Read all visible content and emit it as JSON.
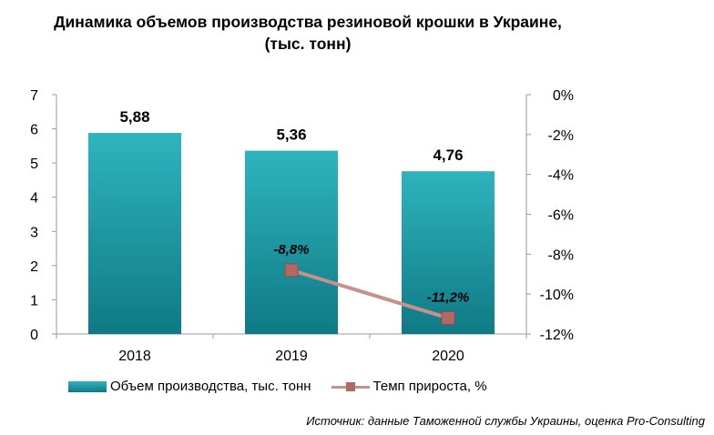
{
  "title_lines": [
    "Динамика объемов производства резиновой крошки в Украине,",
    "(тыс. тонн)"
  ],
  "legend": {
    "bar_label": "Объем производства, тыс. тонн",
    "line_label": "Темп прироста, %"
  },
  "source": "Источник: данные  Таможенной службы Украины, оценка Pro-Consulting",
  "colors": {
    "bar_top": "#2fb4be",
    "bar_bottom": "#0f7a85",
    "line": "#c9908a",
    "marker": "#b06a63"
  },
  "chart_data": {
    "type": "bar",
    "categories": [
      "2018",
      "2019",
      "2020"
    ],
    "series": [
      {
        "name": "Объем производства, тыс. тонн",
        "type": "bar",
        "axis": "left",
        "values": [
          5.88,
          5.36,
          4.76
        ],
        "labels": [
          "5,88",
          "5,36",
          "4,76"
        ]
      },
      {
        "name": "Темп прироста, %",
        "type": "line",
        "axis": "right",
        "values": [
          null,
          -8.8,
          -11.2
        ],
        "labels": [
          "",
          "-8,8%",
          "-11,2%"
        ]
      }
    ],
    "y_left": {
      "min": 0,
      "max": 7,
      "step": 1,
      "tick_labels": [
        "0",
        "1",
        "2",
        "3",
        "4",
        "5",
        "6",
        "7"
      ]
    },
    "y_right": {
      "min": -12,
      "max": 0,
      "step": 2,
      "tick_labels": [
        "-12%",
        "-10%",
        "-8%",
        "-6%",
        "-4%",
        "-2%",
        "0%"
      ]
    },
    "grid": false,
    "legend_position": "bottom"
  }
}
